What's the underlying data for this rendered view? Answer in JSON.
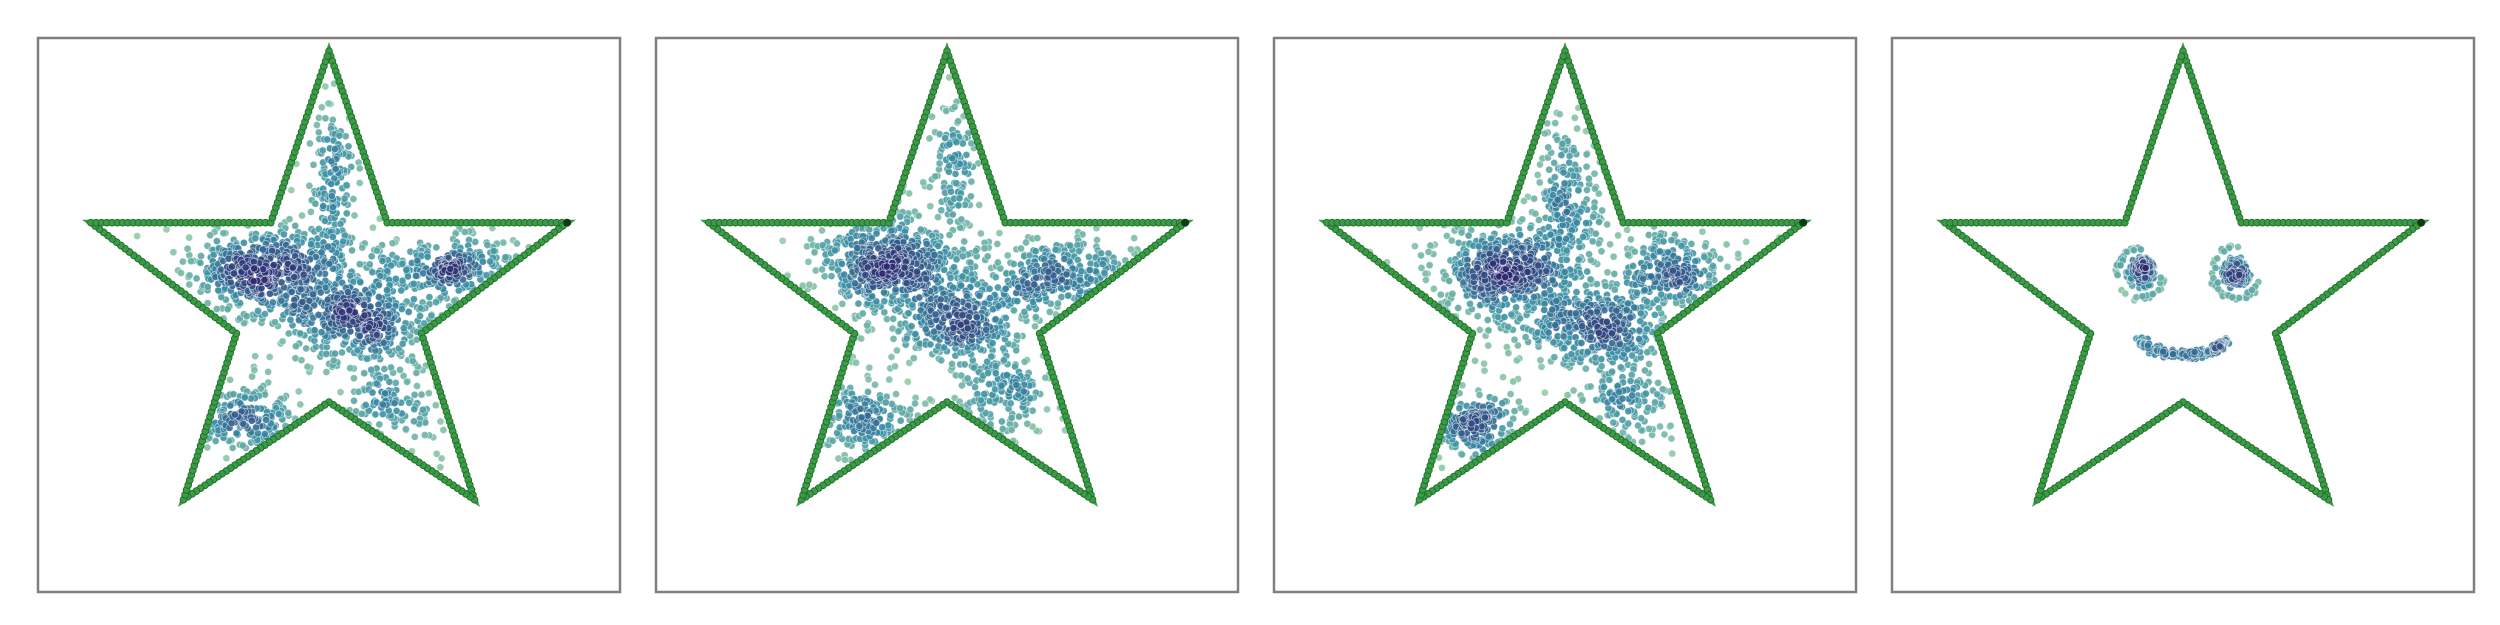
{
  "figure": {
    "layout": "1x4 panels",
    "axes_visible": false
  },
  "colors": {
    "outline": "#3c9b46",
    "outline_edge": "#1f6e2a",
    "frame": "#808080",
    "cmap_low": "#9fd3a8",
    "cmap_mid": "#3a8fa5",
    "cmap_high": "#2c2770"
  },
  "chart_data": [
    {
      "type": "scatter",
      "title": "",
      "grid": false,
      "xlim": [
        -1.1,
        1.1
      ],
      "ylim": [
        -1.1,
        1.0
      ],
      "outline": {
        "shape": "five-point star",
        "vertices": [
          [
            0,
            0.95
          ],
          [
            0.22,
            0.3
          ],
          [
            0.9,
            0.3
          ],
          [
            0.35,
            -0.12
          ],
          [
            0.55,
            -0.75
          ],
          [
            0,
            -0.38
          ],
          [
            -0.55,
            -0.75
          ],
          [
            -0.35,
            -0.12
          ],
          [
            -0.9,
            0.3
          ],
          [
            -0.22,
            0.3
          ]
        ],
        "marker_density": 340
      },
      "points": {
        "seed": 11,
        "clusters": [
          {
            "x": -0.24,
            "y": 0.12,
            "sx": 0.14,
            "sy": 0.09,
            "n": 520
          },
          {
            "x": 0.1,
            "y": -0.06,
            "sx": 0.14,
            "sy": 0.08,
            "n": 380
          },
          {
            "x": 0.45,
            "y": 0.13,
            "sx": 0.15,
            "sy": 0.06,
            "n": 280
          },
          {
            "x": -0.32,
            "y": -0.45,
            "sx": 0.11,
            "sy": 0.07,
            "n": 200
          },
          {
            "x": 0.02,
            "y": 0.45,
            "sx": 0.04,
            "sy": 0.17,
            "n": 150
          },
          {
            "x": 0.24,
            "y": -0.38,
            "sx": 0.09,
            "sy": 0.09,
            "n": 130
          },
          {
            "x": -0.05,
            "y": 0.0,
            "sx": 0.35,
            "sy": 0.33,
            "n": 240
          }
        ]
      }
    },
    {
      "type": "scatter",
      "title": "",
      "grid": false,
      "xlim": [
        -1.1,
        1.1
      ],
      "ylim": [
        -1.1,
        1.0
      ],
      "outline": {
        "shape": "five-point star",
        "vertices": [
          [
            0,
            0.95
          ],
          [
            0.22,
            0.3
          ],
          [
            0.9,
            0.3
          ],
          [
            0.35,
            -0.12
          ],
          [
            0.55,
            -0.75
          ],
          [
            0,
            -0.38
          ],
          [
            -0.55,
            -0.75
          ],
          [
            -0.35,
            -0.12
          ],
          [
            -0.9,
            0.3
          ],
          [
            -0.22,
            0.3
          ]
        ],
        "marker_density": 340
      },
      "points": {
        "seed": 23,
        "clusters": [
          {
            "x": -0.23,
            "y": 0.14,
            "sx": 0.13,
            "sy": 0.09,
            "n": 520
          },
          {
            "x": 0.04,
            "y": -0.08,
            "sx": 0.12,
            "sy": 0.08,
            "n": 340
          },
          {
            "x": 0.42,
            "y": 0.1,
            "sx": 0.16,
            "sy": 0.07,
            "n": 300
          },
          {
            "x": -0.33,
            "y": -0.45,
            "sx": 0.11,
            "sy": 0.07,
            "n": 200
          },
          {
            "x": 0.03,
            "y": 0.52,
            "sx": 0.04,
            "sy": 0.15,
            "n": 120
          },
          {
            "x": 0.22,
            "y": -0.35,
            "sx": 0.08,
            "sy": 0.09,
            "n": 150
          },
          {
            "x": -0.05,
            "y": 0.0,
            "sx": 0.35,
            "sy": 0.33,
            "n": 240
          }
        ]
      }
    },
    {
      "type": "scatter",
      "title": "",
      "grid": false,
      "xlim": [
        -1.1,
        1.1
      ],
      "ylim": [
        -1.1,
        1.0
      ],
      "outline": {
        "shape": "five-point star",
        "vertices": [
          [
            0,
            0.95
          ],
          [
            0.22,
            0.3
          ],
          [
            0.9,
            0.3
          ],
          [
            0.35,
            -0.12
          ],
          [
            0.55,
            -0.75
          ],
          [
            0,
            -0.38
          ],
          [
            -0.55,
            -0.75
          ],
          [
            -0.35,
            -0.12
          ],
          [
            -0.9,
            0.3
          ],
          [
            -0.22,
            0.3
          ]
        ],
        "marker_density": 340
      },
      "points": {
        "seed": 37,
        "clusters": [
          {
            "x": -0.22,
            "y": 0.12,
            "sx": 0.12,
            "sy": 0.09,
            "n": 480
          },
          {
            "x": 0.1,
            "y": -0.08,
            "sx": 0.15,
            "sy": 0.08,
            "n": 380
          },
          {
            "x": 0.4,
            "y": 0.12,
            "sx": 0.11,
            "sy": 0.07,
            "n": 230
          },
          {
            "x": -0.34,
            "y": -0.47,
            "sx": 0.11,
            "sy": 0.07,
            "n": 230
          },
          {
            "x": 0.02,
            "y": 0.4,
            "sx": 0.07,
            "sy": 0.15,
            "n": 200
          },
          {
            "x": 0.24,
            "y": -0.38,
            "sx": 0.09,
            "sy": 0.09,
            "n": 150
          },
          {
            "x": -0.05,
            "y": 0.0,
            "sx": 0.35,
            "sy": 0.33,
            "n": 240
          }
        ]
      }
    },
    {
      "type": "scatter",
      "title": "",
      "grid": false,
      "xlim": [
        -1.1,
        1.1
      ],
      "ylim": [
        -1.1,
        1.0
      ],
      "outline": {
        "shape": "five-point star",
        "vertices": [
          [
            0,
            0.95
          ],
          [
            0.22,
            0.3
          ],
          [
            0.9,
            0.3
          ],
          [
            0.35,
            -0.12
          ],
          [
            0.55,
            -0.75
          ],
          [
            0,
            -0.38
          ],
          [
            -0.55,
            -0.75
          ],
          [
            -0.35,
            -0.12
          ],
          [
            -0.9,
            0.3
          ],
          [
            -0.22,
            0.3
          ]
        ],
        "marker_density": 340
      },
      "points": {
        "seed": 53,
        "face": {
          "eyes": [
            {
              "x": -0.16,
              "y": 0.11,
              "r": 0.055,
              "n": 110,
              "ring_r": 0.09,
              "ring_n": 40
            },
            {
              "x": 0.2,
              "y": 0.11,
              "r": 0.055,
              "n": 110,
              "ring_r": 0.09,
              "ring_n": 40
            }
          ],
          "smile": {
            "x": 0.0,
            "y": -0.13,
            "rx": 0.17,
            "ry": 0.07,
            "n": 170
          }
        }
      }
    }
  ]
}
